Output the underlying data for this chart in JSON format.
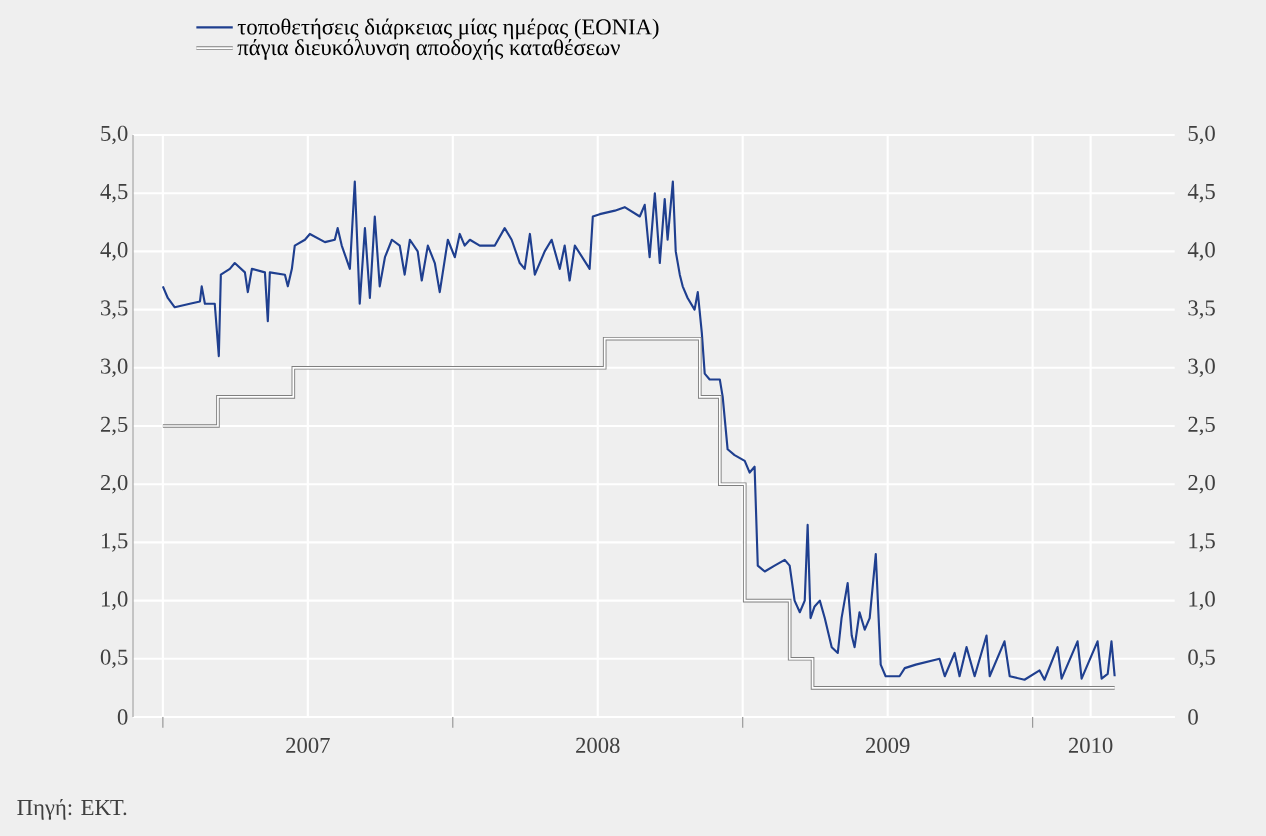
{
  "chart_data": {
    "type": "line",
    "series": [
      {
        "name": "τοποθετήσεις διάρκειας μίας ημέρας (EONIA)",
        "color": "#1f3f8f",
        "x": [
          2007.0,
          2007.017,
          2007.041,
          2007.093,
          2007.128,
          2007.134,
          2007.145,
          2007.179,
          2007.193,
          2007.2,
          2007.231,
          2007.248,
          2007.283,
          2007.293,
          2007.307,
          2007.352,
          2007.362,
          2007.369,
          2007.421,
          2007.431,
          2007.445,
          2007.455,
          2007.49,
          2007.507,
          2007.559,
          2007.593,
          2007.603,
          2007.617,
          2007.645,
          2007.662,
          2007.679,
          2007.697,
          2007.714,
          2007.731,
          2007.748,
          2007.766,
          2007.79,
          2007.817,
          2007.834,
          2007.852,
          2007.879,
          2007.893,
          2007.914,
          2007.938,
          2007.955,
          2007.983,
          2008.007,
          2008.024,
          2008.041,
          2008.059,
          2008.093,
          2008.145,
          2008.179,
          2008.203,
          2008.231,
          2008.248,
          2008.266,
          2008.283,
          2008.317,
          2008.341,
          2008.369,
          2008.386,
          2008.403,
          2008.421,
          2008.472,
          2008.483,
          2008.507,
          2008.559,
          2008.593,
          2008.645,
          2008.662,
          2008.679,
          2008.697,
          2008.714,
          2008.731,
          2008.741,
          2008.759,
          2008.769,
          2008.783,
          2008.793,
          2008.81,
          2008.834,
          2008.845,
          2008.859,
          2008.869,
          2008.886,
          2008.921,
          2008.931,
          2008.948,
          2008.972,
          2009.007,
          2009.024,
          2009.041,
          2009.052,
          2009.076,
          2009.11,
          2009.145,
          2009.162,
          2009.179,
          2009.197,
          2009.214,
          2009.224,
          2009.234,
          2009.248,
          2009.266,
          2009.283,
          2009.307,
          2009.328,
          2009.341,
          2009.362,
          2009.376,
          2009.386,
          2009.403,
          2009.421,
          2009.438,
          2009.459,
          2009.476,
          2009.493,
          2009.541,
          2009.559,
          2009.597,
          2009.679,
          2009.697,
          2009.731,
          2009.748,
          2009.772,
          2009.8,
          2009.841,
          2009.852,
          2009.903,
          2009.921,
          2009.972,
          2010.024,
          2010.041,
          2010.086,
          2010.1,
          2010.155,
          2010.169,
          2010.224,
          2010.238,
          2010.259,
          2010.272,
          2010.283
        ],
        "values": [
          3.7,
          3.6,
          3.52,
          3.55,
          3.57,
          3.7,
          3.55,
          3.55,
          3.1,
          3.8,
          3.85,
          3.9,
          3.82,
          3.65,
          3.85,
          3.82,
          3.4,
          3.82,
          3.8,
          3.7,
          3.85,
          4.05,
          4.1,
          4.15,
          4.08,
          4.1,
          4.2,
          4.05,
          3.85,
          4.6,
          3.55,
          4.2,
          3.6,
          4.3,
          3.7,
          3.95,
          4.1,
          4.05,
          3.8,
          4.1,
          4.0,
          3.75,
          4.05,
          3.9,
          3.65,
          4.1,
          3.95,
          4.15,
          4.05,
          4.1,
          4.05,
          4.05,
          4.2,
          4.1,
          3.9,
          3.85,
          4.15,
          3.8,
          4.0,
          4.1,
          3.85,
          4.05,
          3.75,
          4.05,
          3.85,
          4.3,
          4.32,
          4.35,
          4.38,
          4.3,
          4.4,
          3.95,
          4.5,
          3.9,
          4.45,
          4.1,
          4.6,
          4.0,
          3.8,
          3.7,
          3.6,
          3.5,
          3.65,
          3.3,
          2.95,
          2.9,
          2.9,
          2.75,
          2.3,
          2.25,
          2.2,
          2.1,
          2.15,
          1.3,
          1.25,
          1.3,
          1.35,
          1.3,
          1.0,
          0.9,
          1.0,
          1.65,
          0.85,
          0.95,
          1.0,
          0.85,
          0.6,
          0.55,
          0.85,
          1.15,
          0.7,
          0.6,
          0.9,
          0.75,
          0.85,
          1.4,
          0.45,
          0.35,
          0.35,
          0.42,
          0.45,
          0.5,
          0.35,
          0.55,
          0.35,
          0.6,
          0.35,
          0.7,
          0.35,
          0.65,
          0.35,
          0.32,
          0.4,
          0.32,
          0.6,
          0.33,
          0.65,
          0.33,
          0.65,
          0.33,
          0.37,
          0.65,
          0.35
        ]
      },
      {
        "name": "πάγια διευκόλυνση αποδοχής καταθέσεων",
        "type": "step",
        "color": "#7f7f7f",
        "x": [
          2007.0,
          2007.19,
          2007.45,
          2008.524,
          2008.852,
          2008.921,
          2009.007,
          2009.162,
          2009.241,
          2010.283
        ],
        "values": [
          2.5,
          2.75,
          3.0,
          3.25,
          2.75,
          2.0,
          1.0,
          0.5,
          0.25,
          0.25
        ]
      }
    ],
    "xlim": [
      2006.897,
      2010.49
    ],
    "xticks": [
      {
        "value": 2007,
        "label": null
      },
      {
        "value": 2007.5,
        "label": "2007"
      },
      {
        "value": 2008,
        "label": null
      },
      {
        "value": 2008.5,
        "label": "2008"
      },
      {
        "value": 2009,
        "label": null
      },
      {
        "value": 2009.5,
        "label": "2009"
      },
      {
        "value": 2010,
        "label": null
      },
      {
        "value": 2010.2,
        "label": "2010"
      }
    ],
    "ylim": [
      0,
      5
    ],
    "yticks": [
      0,
      {
        "value": 0.5,
        "label": "0,5"
      },
      {
        "value": 1,
        "label": "1,0"
      },
      {
        "value": 1.5,
        "label": "1,5"
      },
      {
        "value": 2,
        "label": "2,0"
      },
      {
        "value": 2.5,
        "label": "2,5"
      },
      {
        "value": 3,
        "label": "3,0"
      },
      {
        "value": 3.5,
        "label": "3,5"
      },
      {
        "value": 4,
        "label": "4,0"
      },
      {
        "value": 4.5,
        "label": "4,5"
      },
      {
        "value": 5,
        "label": "5,0"
      }
    ],
    "y2lim": [
      0,
      5
    ],
    "y2ticks": [
      0,
      {
        "value": 0.5,
        "label": "0,5"
      },
      {
        "value": 1,
        "label": "1,0"
      },
      {
        "value": 1.5,
        "label": "1,5"
      },
      {
        "value": 2,
        "label": "2,0"
      },
      {
        "value": 2.5,
        "label": "2,5"
      },
      {
        "value": 3,
        "label": "3,0"
      },
      {
        "value": 3.5,
        "label": "3,5"
      },
      {
        "value": 4,
        "label": "4,0"
      },
      {
        "value": 4.5,
        "label": "4,5"
      },
      {
        "value": 5,
        "label": "5,0"
      }
    ],
    "grid": true,
    "legend": "top left",
    "annotations": [
      "Πηγή: ΕΚΤ."
    ]
  }
}
